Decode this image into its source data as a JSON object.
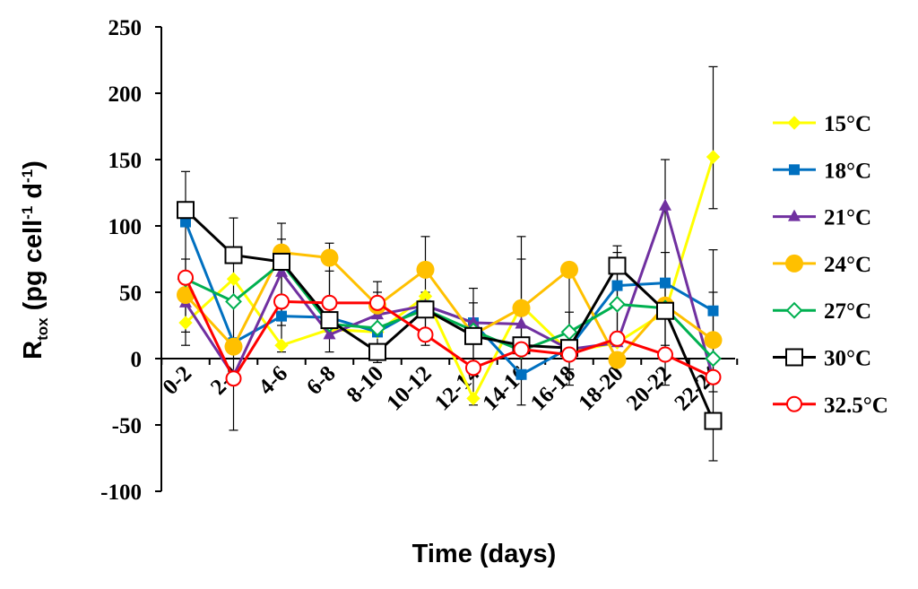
{
  "chart_data": {
    "type": "line",
    "title": "",
    "xlabel": "Time (days)",
    "ylabel": {
      "base": "R",
      "sub": "tox",
      "unit_open": " (pg cell",
      "unit_sup1": "-1",
      "unit_mid": " d",
      "unit_sup2": "-1",
      "unit_close": ")"
    },
    "ylim": [
      -100,
      250
    ],
    "yticks": [
      -100,
      -50,
      0,
      50,
      100,
      150,
      200,
      250
    ],
    "ytick_labels": [
      "-100",
      "-50",
      "0",
      "50",
      "100",
      "150",
      "200",
      "250"
    ],
    "categories": [
      "0-2",
      "2-4",
      "4-6",
      "6-8",
      "8-10",
      "10-12",
      "12-14",
      "14-16",
      "16-18",
      "18-20",
      "20-22",
      "22-24"
    ],
    "grid": false,
    "legend_position": "right",
    "series": [
      {
        "name": "15°C",
        "color": "#ffff00",
        "marker": "diamond-filled",
        "values": [
          27,
          60,
          10,
          22,
          20,
          47,
          -30,
          40,
          5,
          12,
          35,
          152
        ]
      },
      {
        "name": "18°C",
        "color": "#0070c0",
        "marker": "square-filled",
        "values": [
          103,
          12,
          32,
          31,
          20,
          40,
          27,
          -12,
          8,
          55,
          57,
          36
        ]
      },
      {
        "name": "21°C",
        "color": "#7030a0",
        "marker": "triangle-filled",
        "values": [
          42,
          -13,
          65,
          18,
          33,
          40,
          27,
          26,
          7,
          12,
          115,
          -15
        ]
      },
      {
        "name": "24°C",
        "color": "#ffc000",
        "marker": "circle-filled",
        "values": [
          48,
          9,
          80,
          76,
          40,
          67,
          18,
          38,
          67,
          -1,
          40,
          14
        ]
      },
      {
        "name": "27°C",
        "color": "#00b050",
        "marker": "diamond-open",
        "values": [
          60,
          43,
          72,
          26,
          23,
          37,
          21,
          6,
          20,
          41,
          38,
          0
        ]
      },
      {
        "name": "30°C",
        "color": "#000000",
        "marker": "square-open",
        "values": [
          112,
          78,
          73,
          29,
          5,
          37,
          17,
          10,
          8,
          70,
          36,
          -47
        ]
      },
      {
        "name": "32.5°C",
        "color": "#ff0000",
        "marker": "circle-open",
        "values": [
          61,
          -15,
          43,
          42,
          42,
          18,
          -7,
          7,
          3,
          15,
          3,
          -14
        ]
      }
    ],
    "error_bars": {
      "description": "approximate black error bars at selected points",
      "items": [
        {
          "category": "0-2",
          "low": 10,
          "high": 141
        },
        {
          "category": "0-2",
          "low": 20,
          "high": 75
        },
        {
          "category": "2-4",
          "low": -54,
          "high": 106
        },
        {
          "category": "4-6",
          "low": 5,
          "high": 102
        },
        {
          "category": "4-6",
          "low": 25,
          "high": 90
        },
        {
          "category": "6-8",
          "low": 5,
          "high": 87
        },
        {
          "category": "6-8",
          "low": 20,
          "high": 66
        },
        {
          "category": "8-10",
          "low": -3,
          "high": 58
        },
        {
          "category": "8-10",
          "low": 20,
          "high": 50
        },
        {
          "category": "10-12",
          "low": 10,
          "high": 92
        },
        {
          "category": "10-12",
          "low": 22,
          "high": 50
        },
        {
          "category": "12-14",
          "low": -35,
          "high": 53
        },
        {
          "category": "12-14",
          "low": -5,
          "high": 42
        },
        {
          "category": "14-16",
          "low": -35,
          "high": 92
        },
        {
          "category": "14-16",
          "low": -10,
          "high": 75
        },
        {
          "category": "16-18",
          "low": -20,
          "high": 70
        },
        {
          "category": "16-18",
          "low": -8,
          "high": 35
        },
        {
          "category": "18-20",
          "low": 10,
          "high": 85
        },
        {
          "category": "18-20",
          "low": 20,
          "high": 80
        },
        {
          "category": "20-22",
          "low": -20,
          "high": 150
        },
        {
          "category": "20-22",
          "low": 10,
          "high": 80
        },
        {
          "category": "22-24",
          "low": -77,
          "high": 50
        },
        {
          "category": "22-24",
          "low": 113,
          "high": 220
        },
        {
          "category": "22-24",
          "low": -25,
          "high": 82
        }
      ]
    }
  }
}
